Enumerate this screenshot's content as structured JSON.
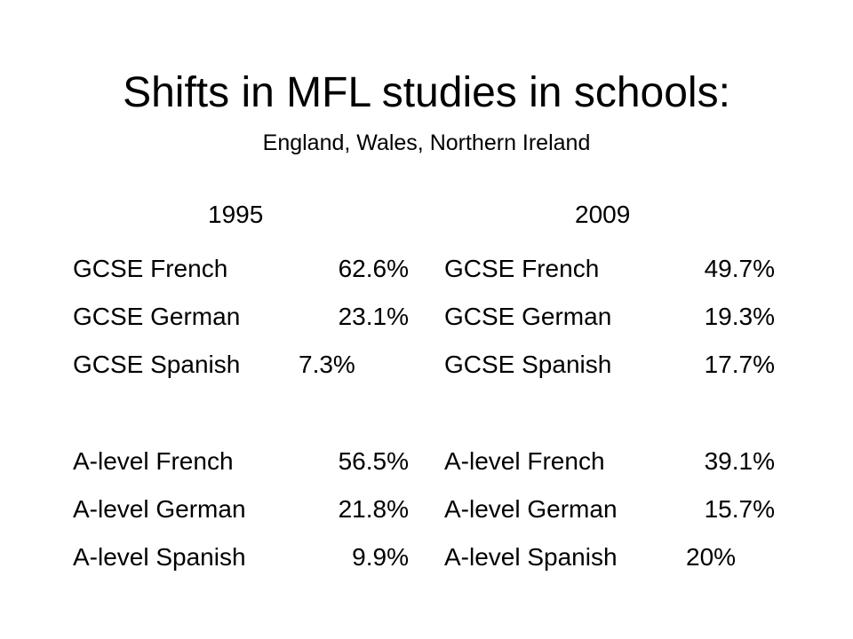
{
  "slide": {
    "title": "Shifts in MFL studies in schools:",
    "subtitle": "England, Wales, Northern Ireland"
  },
  "columns": [
    {
      "year": "1995",
      "gcse": [
        {
          "subject": "GCSE French",
          "percent": "62.6%"
        },
        {
          "subject": "GCSE German",
          "percent": "23.1%"
        },
        {
          "subject": "GCSE Spanish",
          "percent": "7.3%"
        }
      ],
      "alevel": [
        {
          "subject": "A-level French",
          "percent": "56.5%"
        },
        {
          "subject": "A-level German",
          "percent": "21.8%"
        },
        {
          "subject": "A-level Spanish",
          "percent": "9.9%"
        }
      ]
    },
    {
      "year": "2009",
      "gcse": [
        {
          "subject": "GCSE French",
          "percent": "49.7%"
        },
        {
          "subject": "GCSE German",
          "percent": "19.3%"
        },
        {
          "subject": "GCSE Spanish",
          "percent": "17.7%"
        }
      ],
      "alevel": [
        {
          "subject": "A-level French",
          "percent": "39.1%"
        },
        {
          "subject": "A-level German",
          "percent": "15.7%"
        },
        {
          "subject": "A-level Spanish",
          "percent": "20%"
        }
      ]
    }
  ]
}
